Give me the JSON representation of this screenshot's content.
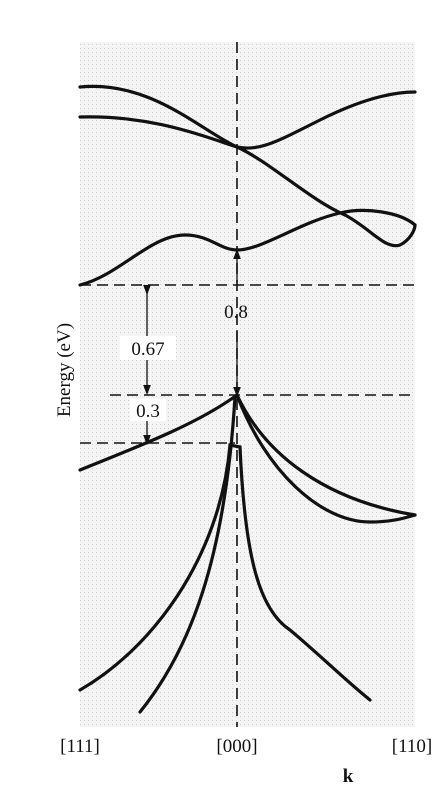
{
  "diagram": {
    "axis_label": "Energy (eV)",
    "gaps": [
      "0.8",
      "0.67",
      "0.3"
    ],
    "k_points": [
      "[111]",
      "[000]",
      "[110]"
    ],
    "k_label": "k"
  }
}
